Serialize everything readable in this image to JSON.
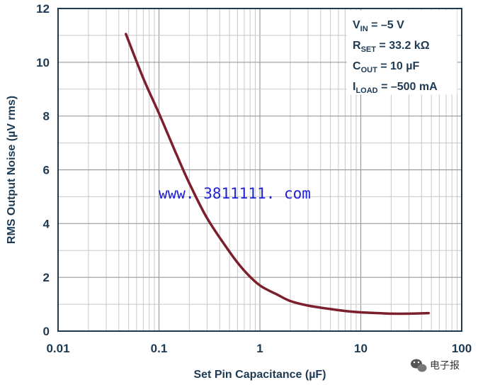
{
  "chart_data": {
    "type": "line",
    "x_scale": "log",
    "xlim": [
      0.01,
      100
    ],
    "ylim": [
      0,
      12
    ],
    "xlabel": "Set Pin Capacitance (µF)",
    "ylabel": "RMS Output Noise (µV rms)",
    "x_tick_labels": [
      "0.01",
      "0.1",
      "1",
      "10",
      "100"
    ],
    "y_tick_labels": [
      "0",
      "2",
      "4",
      "6",
      "8",
      "10",
      "12"
    ],
    "grid": true,
    "legend_placement": "top-right",
    "conditions": [
      {
        "main": "V",
        "sub": "IN",
        "rest": " = –5 V"
      },
      {
        "main": "R",
        "sub": "SET",
        "rest": " = 33.2 kΩ"
      },
      {
        "main": "C",
        "sub": "OUT",
        "rest": " = 10 µF"
      },
      {
        "main": "I",
        "sub": "LOAD",
        "rest": " = –500 mA"
      }
    ],
    "series": [
      {
        "x": [
          0.047,
          0.07,
          0.1,
          0.15,
          0.2,
          0.3,
          0.5,
          0.7,
          1,
          1.5,
          2,
          3,
          5,
          7,
          10,
          15,
          20,
          30,
          47
        ],
        "y": [
          11.05,
          9.4,
          8.1,
          6.55,
          5.5,
          4.2,
          2.95,
          2.25,
          1.7,
          1.35,
          1.12,
          0.95,
          0.82,
          0.75,
          0.7,
          0.67,
          0.65,
          0.65,
          0.67
        ]
      }
    ],
    "line_color": "#7a1f2b",
    "grid_color": "#c8c8c8",
    "axis_color": "#1d3a52"
  },
  "watermark": "www. 3811111. com",
  "source_label": "电子报",
  "source_icon": "wechat-icon"
}
